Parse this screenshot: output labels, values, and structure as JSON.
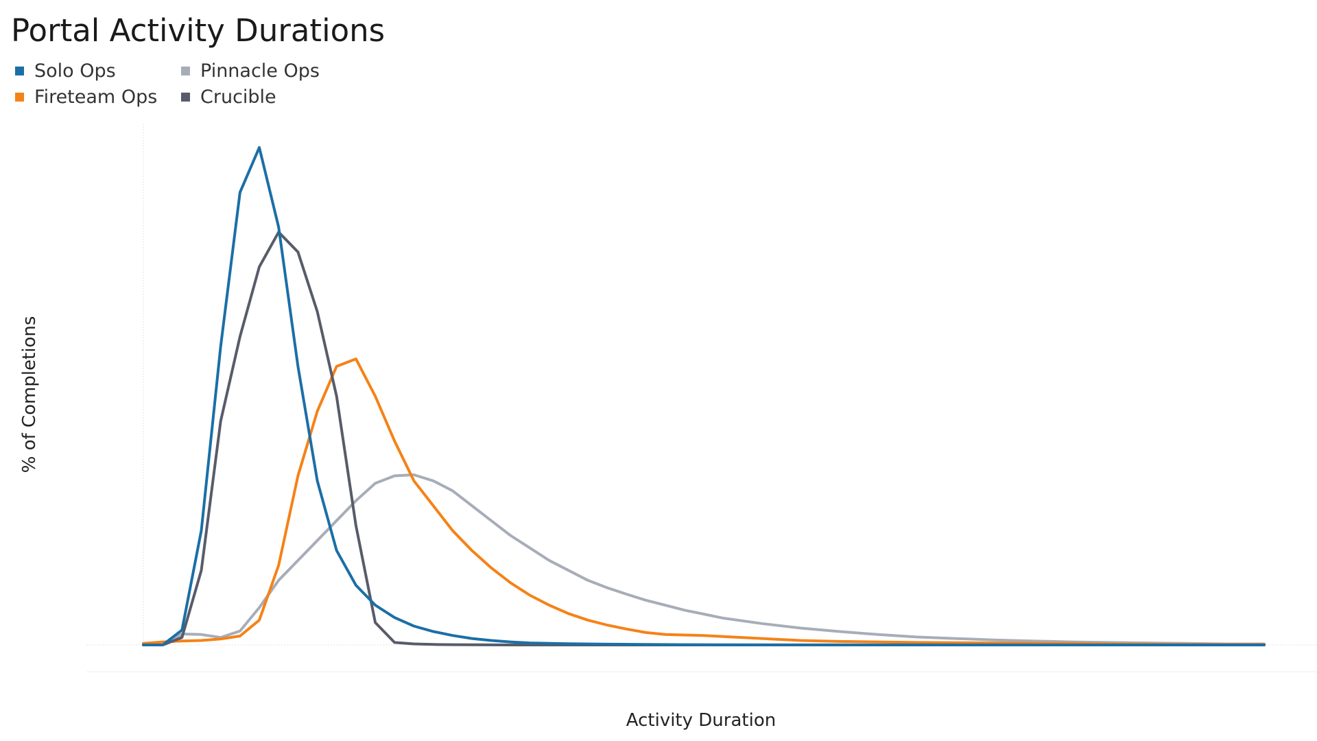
{
  "chart_data": {
    "type": "line",
    "title": "Portal Activity Durations",
    "xlabel": "Activity Duration",
    "ylabel": "% of Completions",
    "xlim": [
      0,
      58
    ],
    "ylim": [
      0,
      100
    ],
    "grid": false,
    "legend_position": "top-left",
    "series": [
      {
        "name": "Solo Ops",
        "color": "#1b6fa6",
        "x": [
          0,
          1,
          2,
          3,
          4,
          5,
          6,
          7,
          8,
          9,
          10,
          11,
          12,
          13,
          14,
          15,
          16,
          17,
          18,
          19,
          20,
          22,
          24,
          26,
          28,
          30,
          35,
          40,
          45,
          50,
          55,
          58
        ],
        "values": [
          0,
          0,
          3,
          23,
          60,
          91,
          100,
          84,
          56,
          33,
          19,
          12,
          8,
          5.5,
          3.8,
          2.7,
          1.9,
          1.3,
          0.9,
          0.6,
          0.4,
          0.25,
          0.15,
          0.1,
          0.05,
          0.03,
          0.02,
          0.01,
          0,
          0,
          0,
          0
        ]
      },
      {
        "name": "Fireteam Ops",
        "color": "#f58218",
        "x": [
          0,
          1,
          2,
          3,
          4,
          5,
          6,
          7,
          8,
          9,
          10,
          11,
          12,
          13,
          14,
          15,
          16,
          17,
          18,
          19,
          20,
          21,
          22,
          23,
          24,
          25,
          26,
          27,
          28,
          29,
          30,
          32,
          34,
          36,
          38,
          40,
          42,
          44,
          46,
          48,
          50,
          52,
          54,
          56,
          58
        ],
        "values": [
          0.3,
          0.6,
          0.8,
          0.9,
          1.2,
          1.8,
          5,
          16,
          34,
          47,
          56,
          57.5,
          50,
          41,
          33,
          28,
          23,
          19,
          15.5,
          12.5,
          10,
          8,
          6.3,
          5,
          4,
          3.2,
          2.5,
          2.1,
          2,
          1.9,
          1.7,
          1.3,
          0.9,
          0.7,
          0.6,
          0.5,
          0.45,
          0.4,
          0.35,
          0.3,
          0.2,
          0.15,
          0.1,
          0.1,
          0.1
        ]
      },
      {
        "name": "Pinnacle Ops",
        "color": "#a7adb8",
        "x": [
          0,
          1,
          2,
          3,
          4,
          5,
          6,
          7,
          8,
          9,
          10,
          11,
          12,
          13,
          14,
          15,
          16,
          17,
          18,
          19,
          20,
          21,
          22,
          23,
          24,
          25,
          26,
          27,
          28,
          29,
          30,
          32,
          34,
          36,
          38,
          40,
          42,
          44,
          46,
          48,
          50,
          52,
          54,
          56,
          58
        ],
        "values": [
          0,
          0,
          2.2,
          2.1,
          1.5,
          2.8,
          7.5,
          13,
          17,
          21,
          25,
          29,
          32.5,
          34,
          34.2,
          33,
          31,
          28,
          25,
          22,
          19.5,
          17,
          15,
          13,
          11.5,
          10.2,
          9,
          8,
          7,
          6.2,
          5.4,
          4.3,
          3.4,
          2.7,
          2.1,
          1.6,
          1.3,
          1.0,
          0.8,
          0.6,
          0.5,
          0.4,
          0.3,
          0.2,
          0.2
        ]
      },
      {
        "name": "Crucible",
        "color": "#585c69",
        "x": [
          0,
          1,
          2,
          3,
          4,
          5,
          6,
          7,
          8,
          9,
          10,
          11,
          12,
          13,
          14,
          15,
          16,
          17,
          18,
          19,
          20,
          22,
          24,
          26,
          28,
          30,
          35,
          40,
          45,
          50,
          55,
          58
        ],
        "values": [
          0,
          0,
          1.5,
          15,
          45,
          62,
          76,
          83,
          79,
          67,
          50,
          24,
          4.5,
          0.5,
          0.2,
          0.1,
          0.05,
          0.03,
          0.02,
          0,
          0,
          0,
          0,
          0,
          0,
          0,
          0,
          0,
          0,
          0,
          0,
          0
        ]
      }
    ]
  }
}
